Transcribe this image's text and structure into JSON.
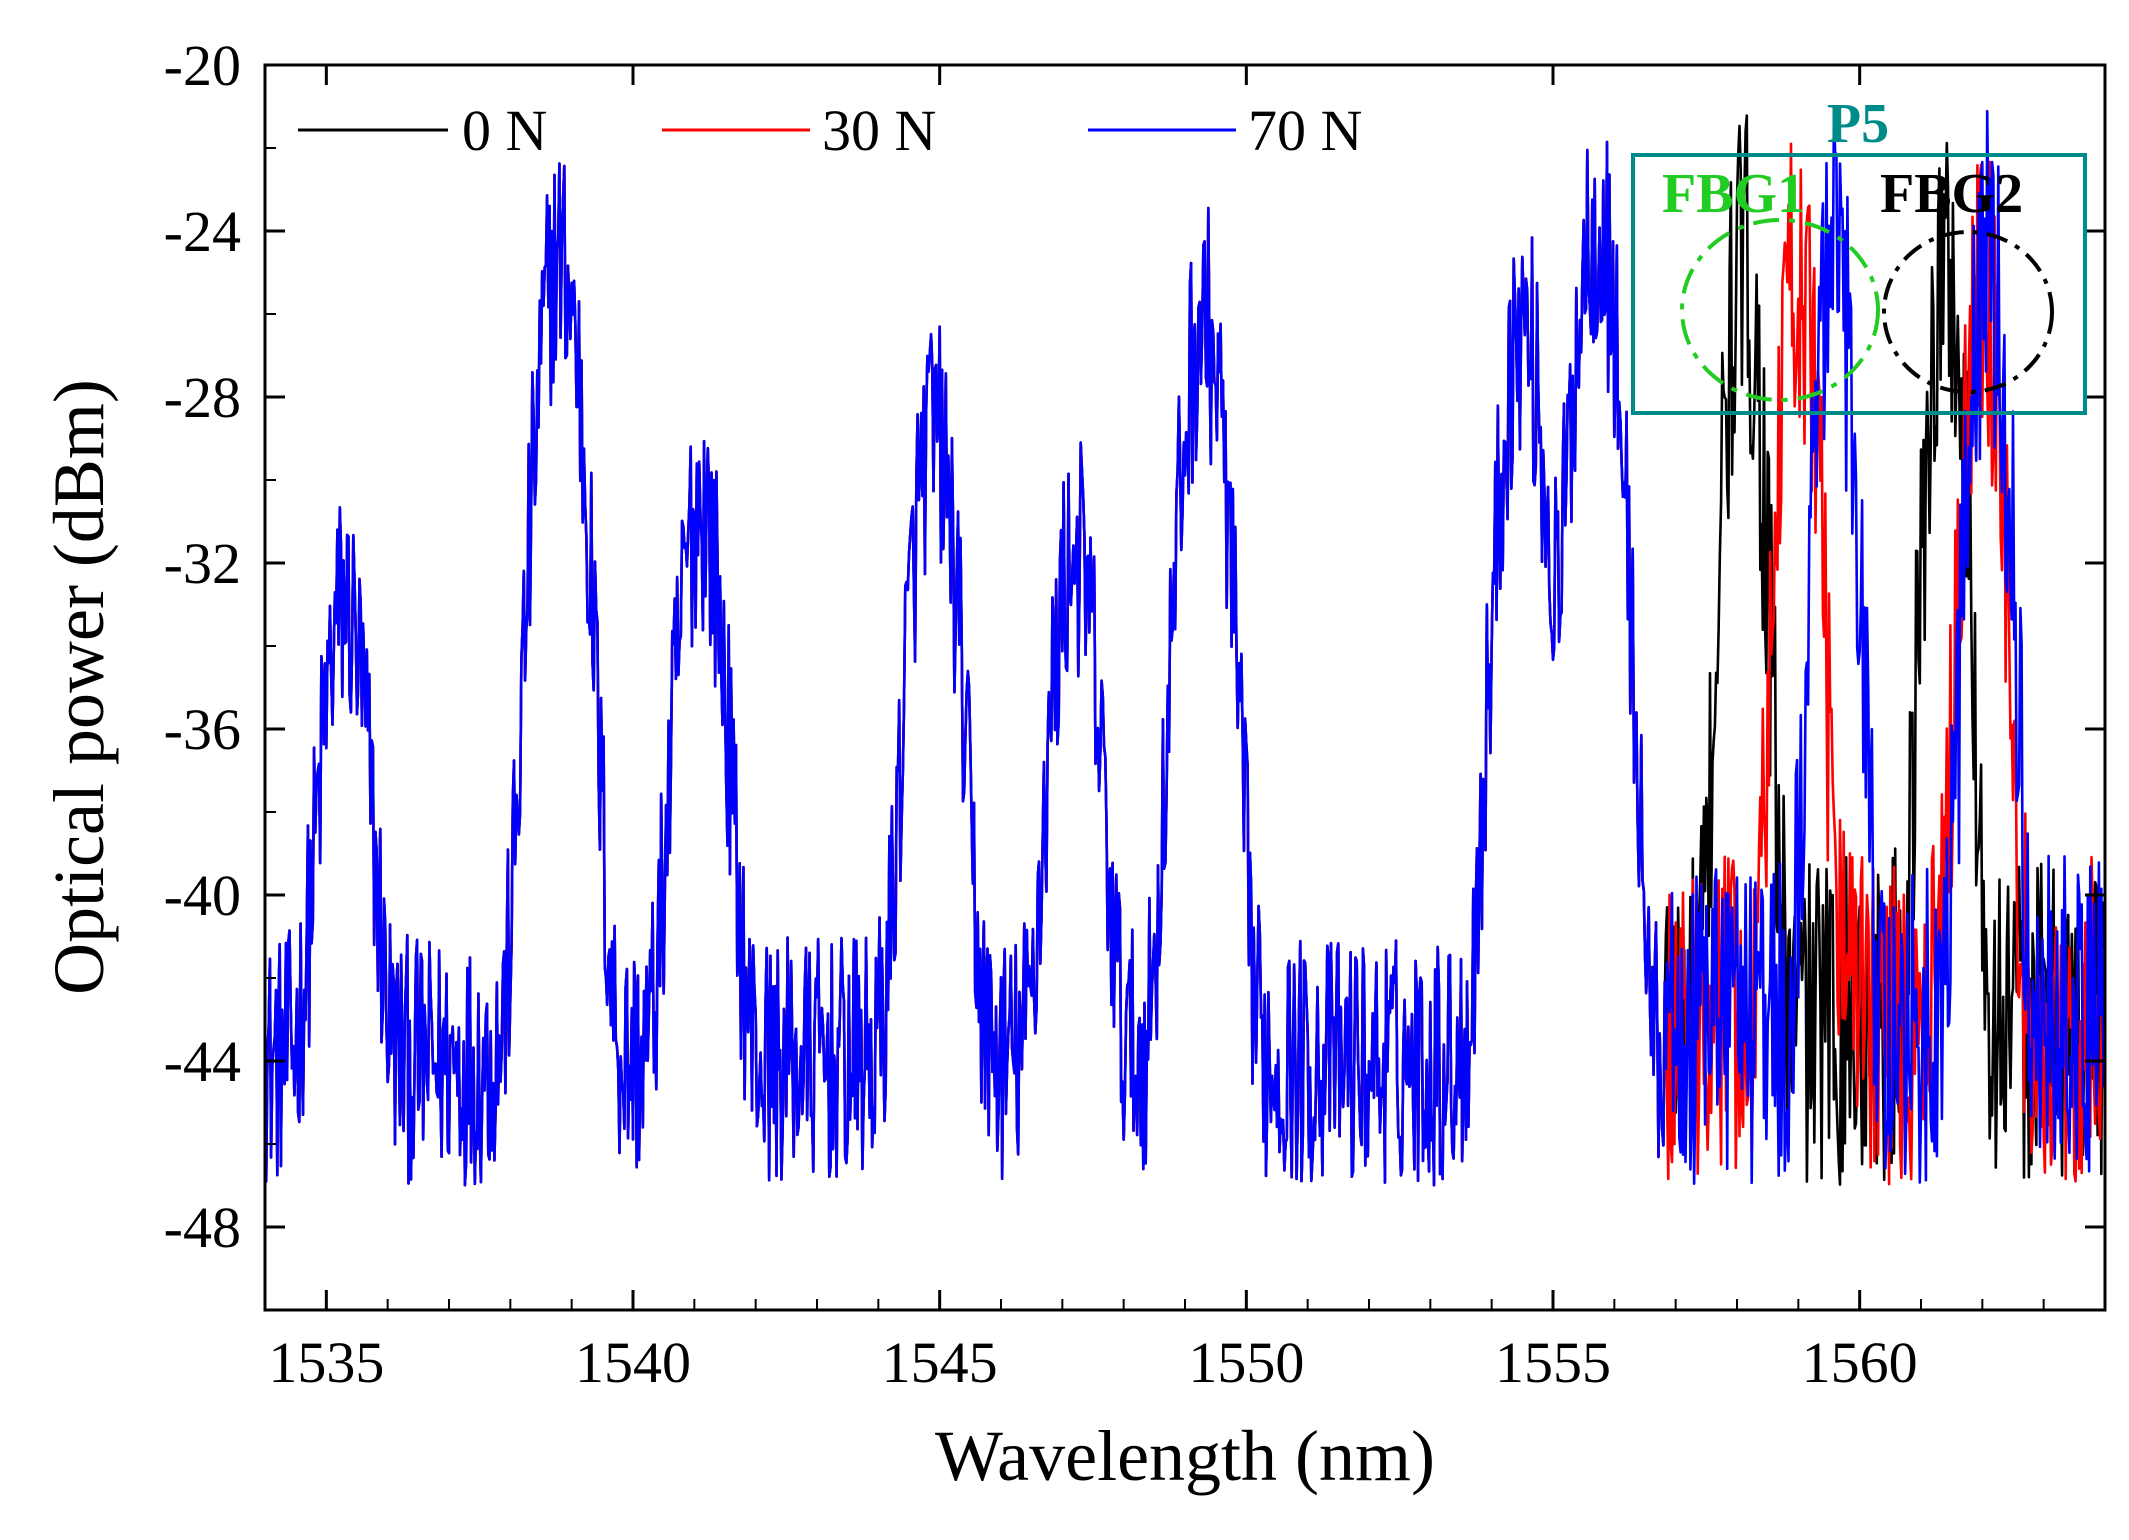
{
  "chart_data": {
    "type": "line",
    "title": "",
    "xlabel": "Wavelength (nm)",
    "ylabel": "Optical power (dBm)",
    "xlim": [
      1534,
      1564
    ],
    "ylim": [
      -50,
      -20
    ],
    "xticks": [
      1535,
      1540,
      1545,
      1550,
      1555,
      1560
    ],
    "yticks": [
      -48,
      -44,
      -40,
      -36,
      -32,
      -28,
      -24,
      -20
    ],
    "xtick_labels": [
      "1535",
      "1540",
      "1545",
      "1550",
      "1555",
      "1560"
    ],
    "ytick_labels": [
      "-48",
      "-44",
      "-40",
      "-36",
      "-32",
      "-28",
      "-24",
      "-20"
    ],
    "grid": false,
    "legend_position": "top-left",
    "series": [
      {
        "name": "0 N",
        "color": "#000000",
        "fbg_peaks": [
          1558.1,
          1561.4
        ]
      },
      {
        "name": "30 N",
        "color": "#ff0000",
        "fbg_peaks": [
          1559.0,
          1562.0
        ]
      },
      {
        "name": "70 N",
        "color": "#0000ff",
        "fbg_peaks": [
          1559.6,
          1562.1
        ]
      }
    ],
    "shared_peaks": [
      {
        "x": 1535.3,
        "y": -33.4
      },
      {
        "x": 1538.8,
        "y": -24.7
      },
      {
        "x": 1541.1,
        "y": -30.8
      },
      {
        "x": 1544.9,
        "y": -29.0
      },
      {
        "x": 1547.2,
        "y": -32.0
      },
      {
        "x": 1549.3,
        "y": -26.3
      },
      {
        "x": 1554.5,
        "y": -26.4
      },
      {
        "x": 1555.7,
        "y": -23.8
      }
    ],
    "fbg_peak_power": -25.0,
    "annotations": [
      {
        "id": "p5",
        "text": "P5",
        "color": "#008b8b"
      },
      {
        "id": "fbg1",
        "text": "FBG1",
        "color": "#22cc22"
      },
      {
        "id": "fbg2",
        "text": "FBG2",
        "color": "#000000"
      }
    ]
  }
}
